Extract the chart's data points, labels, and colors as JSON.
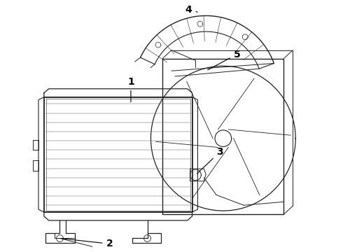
{
  "background_color": "#ffffff",
  "line_color": "#222222",
  "label_color": "#000000",
  "figsize": [
    4.9,
    3.6
  ],
  "dpi": 100
}
